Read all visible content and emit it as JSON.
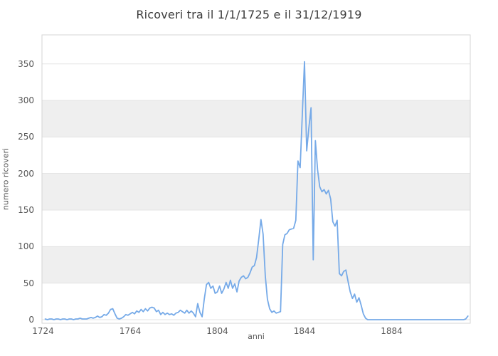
{
  "chart_data": {
    "type": "line",
    "title": "Ricoveri tra il 1/1/1725 e il 31/12/1919",
    "xlabel": "anni",
    "ylabel": "numero ricoveri",
    "xticks": [
      1724,
      1764,
      1804,
      1844,
      1884
    ],
    "yticks": [
      0,
      50,
      100,
      150,
      200,
      250,
      300,
      350
    ],
    "xlim": [
      1723.5,
      1920.5
    ],
    "ylim": [
      0,
      390
    ],
    "grid": true,
    "legend_position": "none",
    "alternate_gray_bands": [
      [
        50,
        100
      ],
      [
        150,
        200
      ],
      [
        250,
        300
      ]
    ],
    "series": [
      {
        "name": "numero ricoveri",
        "color": "#76aae8",
        "x_start_year": 1725,
        "x_end_year": 1919,
        "values": [
          1,
          0,
          1,
          1,
          0,
          1,
          1,
          0,
          1,
          1,
          0,
          1,
          1,
          0,
          1,
          1,
          2,
          1,
          1,
          1,
          2,
          3,
          2,
          3,
          5,
          3,
          4,
          7,
          6,
          9,
          14,
          15,
          8,
          2,
          1,
          2,
          4,
          7,
          6,
          8,
          10,
          8,
          12,
          10,
          14,
          11,
          15,
          12,
          16,
          17,
          16,
          11,
          13,
          7,
          10,
          7,
          9,
          7,
          8,
          6,
          9,
          10,
          13,
          11,
          9,
          13,
          9,
          12,
          9,
          4,
          22,
          10,
          4,
          28,
          48,
          51,
          43,
          46,
          36,
          38,
          46,
          36,
          42,
          51,
          43,
          54,
          43,
          49,
          38,
          53,
          58,
          60,
          56,
          58,
          64,
          72,
          74,
          85,
          110,
          137,
          117,
          60,
          28,
          15,
          10,
          12,
          9,
          10,
          11,
          103,
          116,
          118,
          123,
          124,
          125,
          136,
          217,
          208,
          280,
          353,
          231,
          262,
          290,
          82,
          245,
          205,
          182,
          175,
          178,
          172,
          177,
          165,
          134,
          128,
          136,
          63,
          60,
          66,
          68,
          52,
          38,
          29,
          35,
          24,
          30,
          20,
          8,
          2,
          0,
          0,
          0,
          0,
          0,
          0,
          0,
          0,
          0,
          0,
          0,
          0,
          0,
          0,
          0,
          0,
          0,
          0,
          0,
          0,
          0,
          0,
          0,
          0,
          0,
          0,
          0,
          0,
          0,
          0,
          0,
          0,
          0,
          0,
          0,
          0,
          0,
          0,
          0,
          0,
          0,
          0,
          0,
          0,
          0,
          1,
          5
        ]
      }
    ]
  },
  "style": {
    "background": "#ffffff",
    "band_color": "#efefef",
    "grid_color": "#e3e3e3",
    "frame_color": "#d4d4d4",
    "line_color": "#76aae8",
    "title_color": "#3b3b3b",
    "tick_color": "#575757"
  }
}
